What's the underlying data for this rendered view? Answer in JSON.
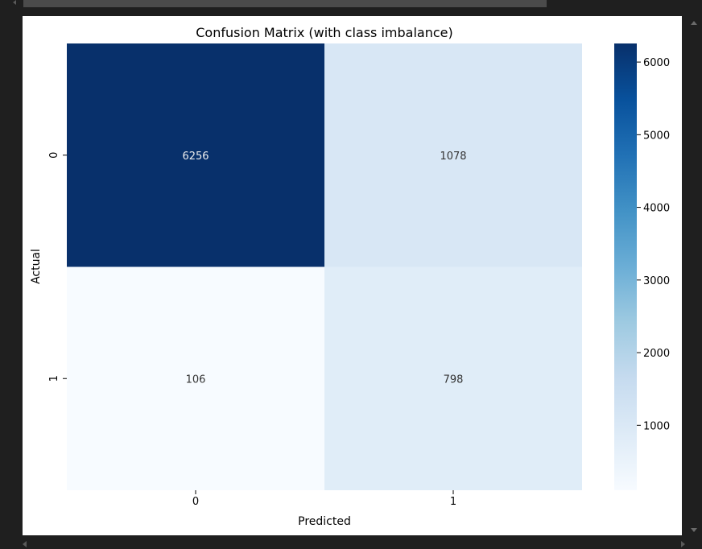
{
  "chart_data": {
    "type": "heatmap",
    "title": "Confusion Matrix (with class imbalance)",
    "xlabel": "Predicted",
    "ylabel": "Actual",
    "x_categories": [
      "0",
      "1"
    ],
    "y_categories": [
      "0",
      "1"
    ],
    "values": [
      [
        6256,
        1078
      ],
      [
        106,
        798
      ]
    ],
    "cell_labels": [
      [
        "6256",
        "1078"
      ],
      [
        "106",
        "798"
      ]
    ],
    "colormap": "Blues",
    "colorbar": {
      "vmin": 106,
      "vmax": 6256,
      "ticks": [
        1000,
        2000,
        3000,
        4000,
        5000,
        6000
      ],
      "tick_labels": [
        "1000",
        "2000",
        "3000",
        "4000",
        "5000",
        "6000"
      ]
    },
    "colors": {
      "dark_cell": "#08306b",
      "light_cell": "#f7fbff",
      "dark_text": "#333333",
      "light_text": "#eeeeee"
    }
  }
}
